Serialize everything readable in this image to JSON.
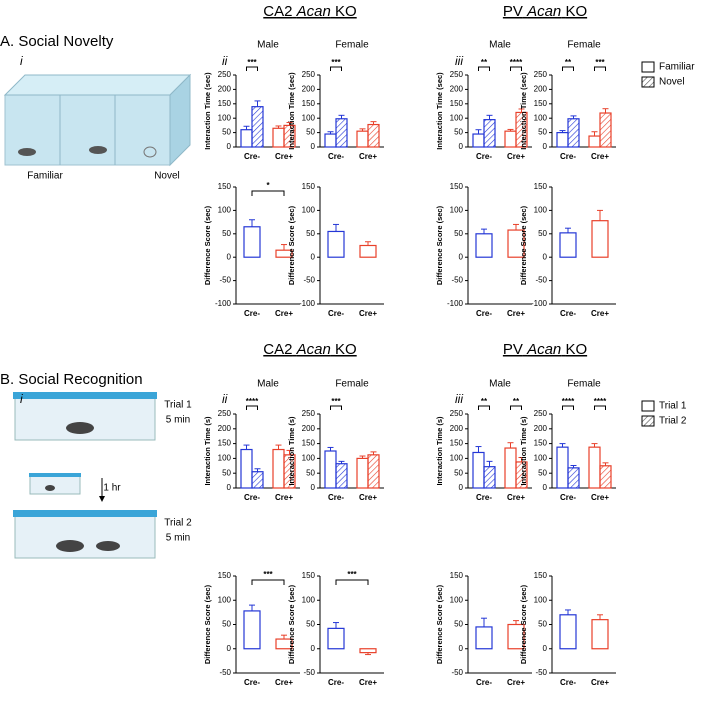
{
  "sections": [
    {
      "title": "A. Social Novelty",
      "label": "i",
      "illustration": [
        "Familiar",
        "Novel"
      ],
      "groups": [
        {
          "title": [
            "CA2",
            "Acan",
            "KO"
          ],
          "label": "ii"
        },
        {
          "title": [
            "PV",
            "Acan",
            "KO"
          ],
          "label": "iii"
        }
      ]
    },
    {
      "title": "B. Social Recognition",
      "label": "i",
      "illustration": [
        "Trial 1",
        "5 min",
        "1 hr",
        "Trial 2",
        "5 min"
      ],
      "groups": [
        {
          "title": [
            "CA2",
            "Acan",
            "KO"
          ],
          "label": "ii"
        },
        {
          "title": [
            "PV",
            "Acan",
            "KO"
          ],
          "label": "iii"
        }
      ]
    }
  ],
  "chart_data": [
    {
      "type": "bar",
      "subtitle": "Male",
      "ylabel": "Interaction Time (sec)",
      "categories": [
        "Cre-",
        "Cre+"
      ],
      "category_colors": [
        "#2437d6",
        "#e8402a"
      ],
      "series": [
        {
          "name": "Familiar",
          "values": [
            60,
            65
          ],
          "errors": [
            12,
            8
          ]
        },
        {
          "name": "Novel",
          "hatch": true,
          "values": [
            140,
            75
          ],
          "errors": [
            20,
            10
          ]
        }
      ],
      "ylim": [
        0,
        250
      ],
      "yticks": [
        0,
        50,
        100,
        150,
        200,
        250
      ],
      "significance": [
        "***",
        null
      ]
    },
    {
      "type": "bar",
      "subtitle": "Female",
      "ylabel": "Interaction Time (sec)",
      "categories": [
        "Cre-",
        "Cre+"
      ],
      "category_colors": [
        "#2437d6",
        "#e8402a"
      ],
      "series": [
        {
          "name": "Familiar",
          "values": [
            45,
            55
          ],
          "errors": [
            8,
            8
          ]
        },
        {
          "name": "Novel",
          "hatch": true,
          "values": [
            98,
            78
          ],
          "errors": [
            12,
            10
          ]
        }
      ],
      "ylim": [
        0,
        250
      ],
      "yticks": [
        0,
        50,
        100,
        150,
        200,
        250
      ],
      "significance": [
        "***",
        null
      ]
    },
    {
      "type": "bar",
      "subtitle": "Male",
      "ylabel": "Interaction Time (sec)",
      "categories": [
        "Cre-",
        "Cre+"
      ],
      "category_colors": [
        "#2437d6",
        "#e8402a"
      ],
      "series": [
        {
          "name": "Familiar",
          "values": [
            45,
            55
          ],
          "errors": [
            15,
            6
          ]
        },
        {
          "name": "Novel",
          "hatch": true,
          "values": [
            95,
            120
          ],
          "errors": [
            15,
            12
          ]
        }
      ],
      "ylim": [
        0,
        250
      ],
      "yticks": [
        0,
        50,
        100,
        150,
        200,
        250
      ],
      "significance": [
        "**",
        "****"
      ]
    },
    {
      "type": "bar",
      "subtitle": "Female",
      "ylabel": "Interaction Time (sec)",
      "categories": [
        "Cre-",
        "Cre+"
      ],
      "category_colors": [
        "#2437d6",
        "#e8402a"
      ],
      "series": [
        {
          "name": "Familiar",
          "values": [
            50,
            38
          ],
          "errors": [
            7,
            15
          ]
        },
        {
          "name": "Novel",
          "hatch": true,
          "values": [
            98,
            118
          ],
          "errors": [
            10,
            15
          ]
        }
      ],
      "ylim": [
        0,
        250
      ],
      "yticks": [
        0,
        50,
        100,
        150,
        200,
        250
      ],
      "significance": [
        "**",
        "***"
      ],
      "legend": "right"
    },
    {
      "type": "bar",
      "ylabel": "Difference Score (sec)",
      "categories": [
        "Cre-",
        "Cre+"
      ],
      "category_colors": [
        "#2437d6",
        "#e8402a"
      ],
      "values": [
        65,
        15
      ],
      "errors": [
        15,
        12
      ],
      "ylim": [
        -100,
        150
      ],
      "yticks": [
        -100,
        -50,
        0,
        50,
        100,
        150
      ],
      "significance": "*"
    },
    {
      "type": "bar",
      "ylabel": "Difference Score (sec)",
      "categories": [
        "Cre-",
        "Cre+"
      ],
      "category_colors": [
        "#2437d6",
        "#e8402a"
      ],
      "values": [
        55,
        25
      ],
      "errors": [
        15,
        8
      ],
      "ylim": [
        -100,
        150
      ],
      "yticks": [
        -100,
        -50,
        0,
        50,
        100,
        150
      ]
    },
    {
      "type": "bar",
      "ylabel": "Difference Score (sec)",
      "categories": [
        "Cre-",
        "Cre+"
      ],
      "category_colors": [
        "#2437d6",
        "#e8402a"
      ],
      "values": [
        50,
        58
      ],
      "errors": [
        10,
        12
      ],
      "ylim": [
        -100,
        150
      ],
      "yticks": [
        -100,
        -50,
        0,
        50,
        100,
        150
      ]
    },
    {
      "type": "bar",
      "ylabel": "Difference Score (sec)",
      "categories": [
        "Cre-",
        "Cre+"
      ],
      "category_colors": [
        "#2437d6",
        "#e8402a"
      ],
      "values": [
        52,
        78
      ],
      "errors": [
        10,
        22
      ],
      "ylim": [
        -100,
        150
      ],
      "yticks": [
        -100,
        -50,
        0,
        50,
        100,
        150
      ]
    },
    {
      "type": "bar",
      "subtitle": "Male",
      "ylabel": "Interaction Time (s)",
      "categories": [
        "Cre-",
        "Cre+"
      ],
      "category_colors": [
        "#2437d6",
        "#e8402a"
      ],
      "series": [
        {
          "name": "Trial 1",
          "values": [
            130,
            130
          ],
          "errors": [
            15,
            15
          ]
        },
        {
          "name": "Trial 2",
          "hatch": true,
          "values": [
            55,
            112
          ],
          "errors": [
            10,
            15
          ]
        }
      ],
      "ylim": [
        0,
        250
      ],
      "yticks": [
        0,
        50,
        100,
        150,
        200,
        250
      ],
      "significance": [
        "****",
        null
      ]
    },
    {
      "type": "bar",
      "subtitle": "Female",
      "ylabel": "Interaction Time (s)",
      "categories": [
        "Cre-",
        "Cre+"
      ],
      "category_colors": [
        "#2437d6",
        "#e8402a"
      ],
      "series": [
        {
          "name": "Trial 1",
          "values": [
            125,
            100
          ],
          "errors": [
            12,
            8
          ]
        },
        {
          "name": "Trial 2",
          "hatch": true,
          "values": [
            82,
            112
          ],
          "errors": [
            8,
            10
          ]
        }
      ],
      "ylim": [
        0,
        250
      ],
      "yticks": [
        0,
        50,
        100,
        150,
        200,
        250
      ],
      "significance": [
        "***",
        null
      ]
    },
    {
      "type": "bar",
      "subtitle": "Male",
      "ylabel": "Interaction Time (s)",
      "categories": [
        "Cre-",
        "Cre+"
      ],
      "category_colors": [
        "#2437d6",
        "#e8402a"
      ],
      "series": [
        {
          "name": "Trial 1",
          "values": [
            120,
            135
          ],
          "errors": [
            20,
            18
          ]
        },
        {
          "name": "Trial 2",
          "hatch": true,
          "values": [
            72,
            88
          ],
          "errors": [
            18,
            15
          ]
        }
      ],
      "ylim": [
        0,
        250
      ],
      "yticks": [
        0,
        50,
        100,
        150,
        200,
        250
      ],
      "significance": [
        "**",
        "**"
      ]
    },
    {
      "type": "bar",
      "subtitle": "Female",
      "ylabel": "Interaction Time (s)",
      "categories": [
        "Cre-",
        "Cre+"
      ],
      "category_colors": [
        "#2437d6",
        "#e8402a"
      ],
      "series": [
        {
          "name": "Trial 1",
          "values": [
            138,
            138
          ],
          "errors": [
            12,
            12
          ]
        },
        {
          "name": "Trial 2",
          "hatch": true,
          "values": [
            68,
            75
          ],
          "errors": [
            8,
            10
          ]
        }
      ],
      "ylim": [
        0,
        250
      ],
      "yticks": [
        0,
        50,
        100,
        150,
        200,
        250
      ],
      "significance": [
        "****",
        "****"
      ],
      "legend": "right"
    },
    {
      "type": "bar",
      "ylabel": "Difference Score (sec)",
      "categories": [
        "Cre-",
        "Cre+"
      ],
      "category_colors": [
        "#2437d6",
        "#e8402a"
      ],
      "values": [
        78,
        20
      ],
      "errors": [
        12,
        8
      ],
      "ylim": [
        -50,
        150
      ],
      "yticks": [
        -50,
        0,
        50,
        100,
        150
      ],
      "significance": "***"
    },
    {
      "type": "bar",
      "ylabel": "Difference Score (sec)",
      "categories": [
        "Cre-",
        "Cre+"
      ],
      "category_colors": [
        "#2437d6",
        "#e8402a"
      ],
      "values": [
        42,
        -8
      ],
      "errors": [
        12,
        4
      ],
      "ylim": [
        -50,
        150
      ],
      "yticks": [
        -50,
        0,
        50,
        100,
        150
      ],
      "significance": "***"
    },
    {
      "type": "bar",
      "ylabel": "Difference Score (sec)",
      "categories": [
        "Cre-",
        "Cre+"
      ],
      "category_colors": [
        "#2437d6",
        "#e8402a"
      ],
      "values": [
        45,
        50
      ],
      "errors": [
        18,
        8
      ],
      "ylim": [
        -50,
        150
      ],
      "yticks": [
        -50,
        0,
        50,
        100,
        150
      ]
    },
    {
      "type": "bar",
      "ylabel": "Difference Score (sec)",
      "categories": [
        "Cre-",
        "Cre+"
      ],
      "category_colors": [
        "#2437d6",
        "#e8402a"
      ],
      "values": [
        70,
        60
      ],
      "errors": [
        10,
        10
      ],
      "ylim": [
        -50,
        150
      ],
      "yticks": [
        -50,
        0,
        50,
        100,
        150
      ]
    }
  ]
}
